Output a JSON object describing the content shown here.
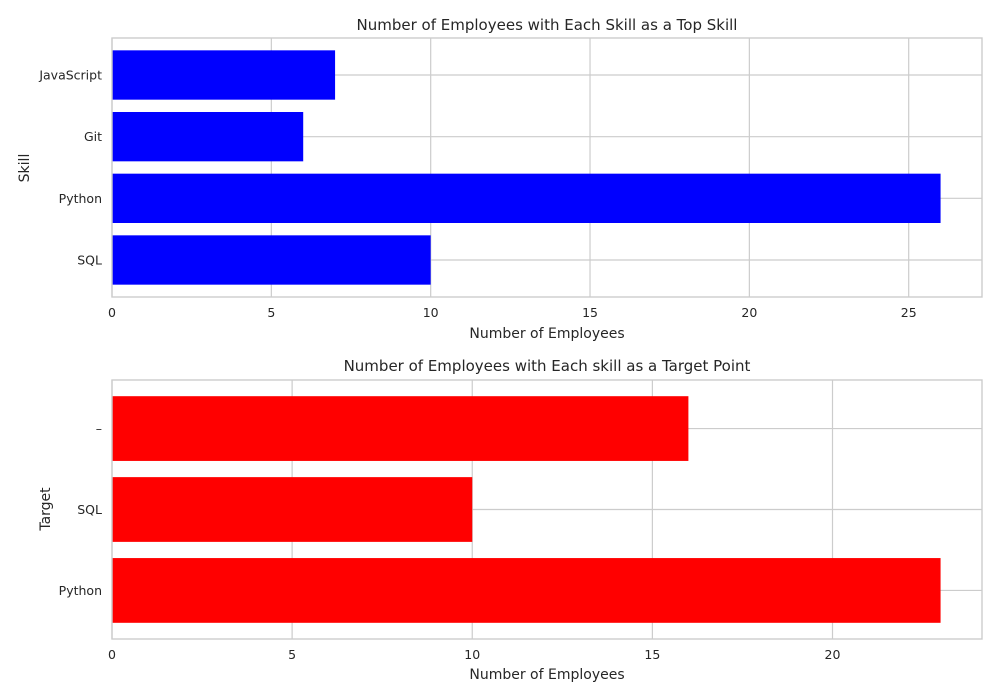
{
  "chart_data": [
    {
      "type": "bar",
      "orientation": "horizontal",
      "title": "Number of Employees with Each Skill as a Top Skill",
      "xlabel": "Number of Employees",
      "ylabel": "Skill",
      "categories": [
        "SQL",
        "Python",
        "Git",
        "JavaScript"
      ],
      "values": [
        10,
        26,
        6,
        7
      ],
      "xlim": [
        0,
        27.3
      ],
      "xticks": [
        "0",
        "5",
        "10",
        "15",
        "20",
        "25"
      ],
      "xtick_values": [
        0,
        5,
        10,
        15,
        20,
        25
      ],
      "color": "#0000ff",
      "grid": true
    },
    {
      "type": "bar",
      "orientation": "horizontal",
      "title": "Number of Employees with Each skill as a Target Point",
      "xlabel": "Number of Employees",
      "ylabel": "Target",
      "categories": [
        "Python",
        "SQL",
        "–"
      ],
      "values": [
        23,
        10,
        16
      ],
      "xlim": [
        0,
        24.15
      ],
      "xticks": [
        "0",
        "5",
        "10",
        "15",
        "20"
      ],
      "xtick_values": [
        0,
        5,
        10,
        15,
        20
      ],
      "color": "#ff0000",
      "grid": true
    }
  ]
}
